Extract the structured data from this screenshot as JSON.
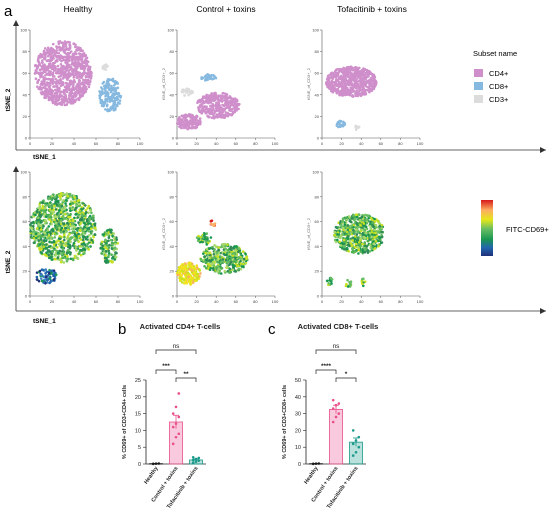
{
  "panel_labels": {
    "a": "a",
    "b": "b",
    "c": "c"
  },
  "tsne": {
    "columns": [
      "Healthy",
      "Control + toxins",
      "Tofacitinib + toxins"
    ],
    "xlabel": "tSNE_1",
    "ylabel": "tSNE_2",
    "small_ylabel": "tSNE_of_CD3+_2",
    "yticks": [
      "0",
      "20",
      "40",
      "60",
      "80",
      "100"
    ],
    "xticks": [
      "0",
      "20",
      "40",
      "60",
      "80",
      "100"
    ]
  },
  "legend": {
    "title": "Subset name",
    "items": [
      {
        "label": "CD4+",
        "color": "#cf8fcb"
      },
      {
        "label": "CD8+",
        "color": "#86b9e0"
      },
      {
        "label": "CD3+",
        "color": "#dcdcdc"
      }
    ],
    "colorbar_label": "FITC-CD69+",
    "colorbar_colors": [
      "#d7191c",
      "#fdae61",
      "#e6e619",
      "#66bd63",
      "#1a9850",
      "#2166ac",
      "#1f2f7a"
    ]
  },
  "chart_data": [
    {
      "type": "bar",
      "title": "Activated CD4+ T-cells",
      "ylabel": "% CD69+ of CD3+CD4+ cells",
      "categories": [
        "Healthy",
        "Control + toxins",
        "Tofacitinib + toxins"
      ],
      "values": [
        0.1,
        12.5,
        1.2
      ],
      "errors": [
        0.05,
        2.0,
        0.3
      ],
      "points": [
        [
          0.05,
          0.1,
          0.15
        ],
        [
          6,
          8,
          9,
          11,
          12,
          14,
          15,
          17,
          21
        ],
        [
          0.4,
          0.7,
          1.0,
          1.2,
          1.5,
          1.8,
          2.0
        ]
      ],
      "colors": [
        "#1a1a1a",
        "#e84f8c",
        "#1a9a8a"
      ],
      "ylim": [
        0,
        25
      ],
      "yticks": [
        "0",
        "5",
        "10",
        "15",
        "20",
        "25"
      ],
      "annotations": [
        "ns",
        "***",
        "**"
      ]
    },
    {
      "type": "bar",
      "title": "Activated CD8+ T-cells",
      "ylabel": "% CD69+ of CD3+CD8+ cells",
      "categories": [
        "Healthy",
        "Control + toxins",
        "Tofacitinib + toxins"
      ],
      "values": [
        0.2,
        32.5,
        13.0
      ],
      "errors": [
        0.1,
        2.5,
        2.5
      ],
      "points": [
        [
          0.1,
          0.2,
          0.3
        ],
        [
          25,
          28,
          30,
          33,
          35,
          36,
          38
        ],
        [
          5,
          7,
          10,
          12,
          14,
          16,
          20
        ]
      ],
      "colors": [
        "#1a1a1a",
        "#e84f8c",
        "#1a9a8a"
      ],
      "ylim": [
        0,
        50
      ],
      "yticks": [
        "0",
        "10",
        "20",
        "30",
        "40",
        "50"
      ],
      "annotations": [
        "ns",
        "****",
        "*"
      ]
    }
  ]
}
